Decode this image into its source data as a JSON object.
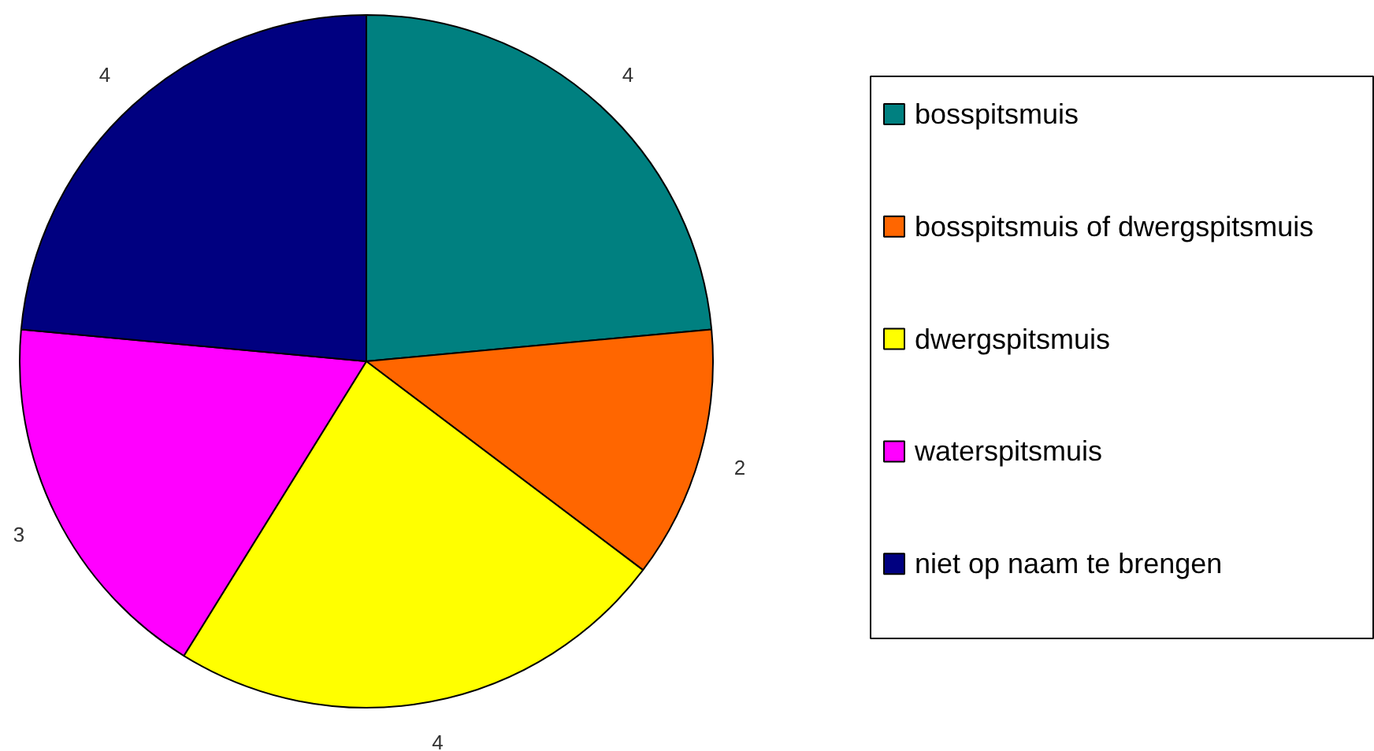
{
  "chart_data": {
    "type": "pie",
    "categories": [
      "bosspitsmuis",
      "bosspitsmuis of dwergspitsmuis",
      "dwergspitsmuis",
      "waterspitsmuis",
      "niet op naam te brengen"
    ],
    "values": [
      4,
      2,
      4,
      3,
      4
    ],
    "colors": [
      "#008080",
      "#ff6600",
      "#ffff00",
      "#ff00ff",
      "#000080"
    ],
    "data_labels": true,
    "legend": "right"
  }
}
